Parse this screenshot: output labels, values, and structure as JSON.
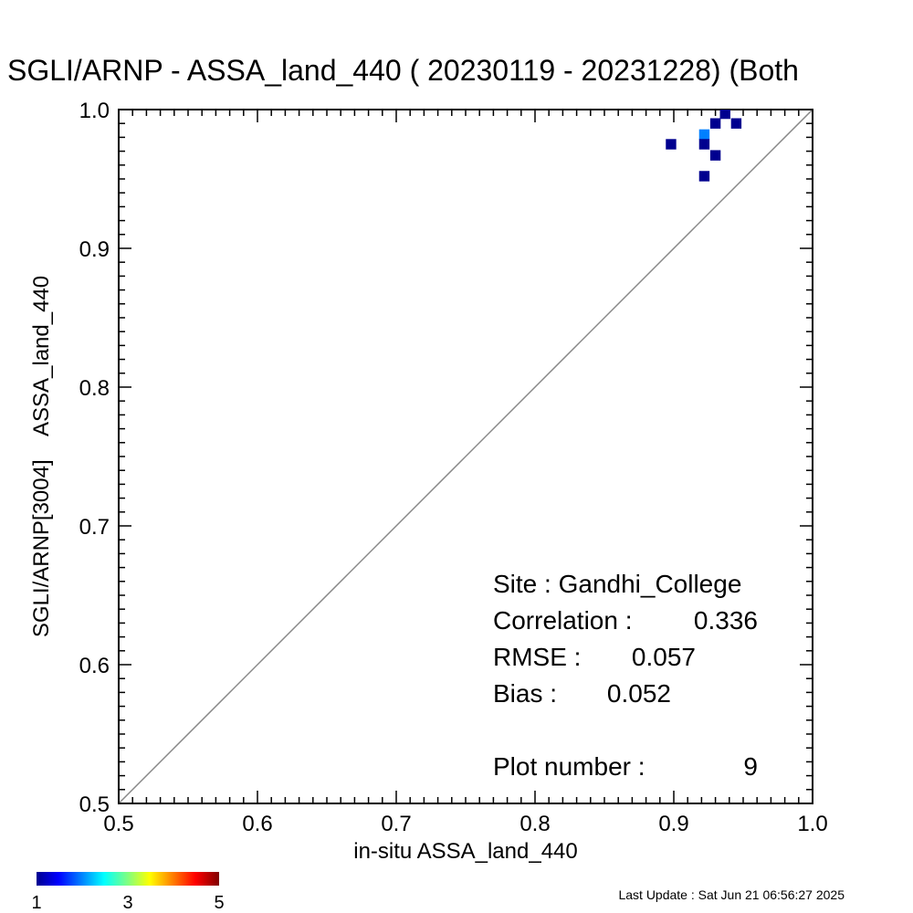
{
  "chart_data": {
    "type": "heatmap",
    "title": "SGLI/ARNP - ASSA_land_440 ( 20230119 - 20231228) (Both",
    "xlabel": "in-situ ASSA_land_440",
    "ylabel": "SGLI/ARNP[3004]    ASSA_land_440",
    "xlim": [
      0.5,
      1.0
    ],
    "ylim": [
      0.5,
      1.0
    ],
    "x_ticks": [
      "0.5",
      "0.6",
      "0.7",
      "0.8",
      "0.9",
      "1.0"
    ],
    "y_ticks": [
      "0.5",
      "0.6",
      "0.7",
      "0.8",
      "0.9",
      "1.0"
    ],
    "one_to_one_line": true,
    "cells": [
      {
        "x": 0.898,
        "y": 0.975,
        "count": 1
      },
      {
        "x": 0.922,
        "y": 0.982,
        "count": 2
      },
      {
        "x": 0.922,
        "y": 0.975,
        "count": 1
      },
      {
        "x": 0.922,
        "y": 0.952,
        "count": 1
      },
      {
        "x": 0.93,
        "y": 0.99,
        "count": 1
      },
      {
        "x": 0.93,
        "y": 0.967,
        "count": 1
      },
      {
        "x": 0.937,
        "y": 0.997,
        "count": 1
      },
      {
        "x": 0.945,
        "y": 0.99,
        "count": 1
      }
    ],
    "colorbar": {
      "min_label": "1",
      "mid_label": "3",
      "max_label": "5",
      "min": 1,
      "max": 5
    },
    "colorscale": [
      "#00008f",
      "#0000ff",
      "#0080ff",
      "#00ffff",
      "#80ff80",
      "#ffff00",
      "#ff8000",
      "#ff0000",
      "#800000"
    ]
  },
  "stats": {
    "site_label": "Site : Gandhi_College",
    "correlation_label": "Correlation :",
    "correlation_value": "0.336",
    "rmse_label": "RMSE :",
    "rmse_value": "0.057",
    "bias_label": "Bias :",
    "bias_value": "0.052",
    "plot_number_label": "Plot number :",
    "plot_number_value": "9"
  },
  "footer": {
    "last_update": "Last Update : Sat Jun 21 06:56:27 2025"
  }
}
